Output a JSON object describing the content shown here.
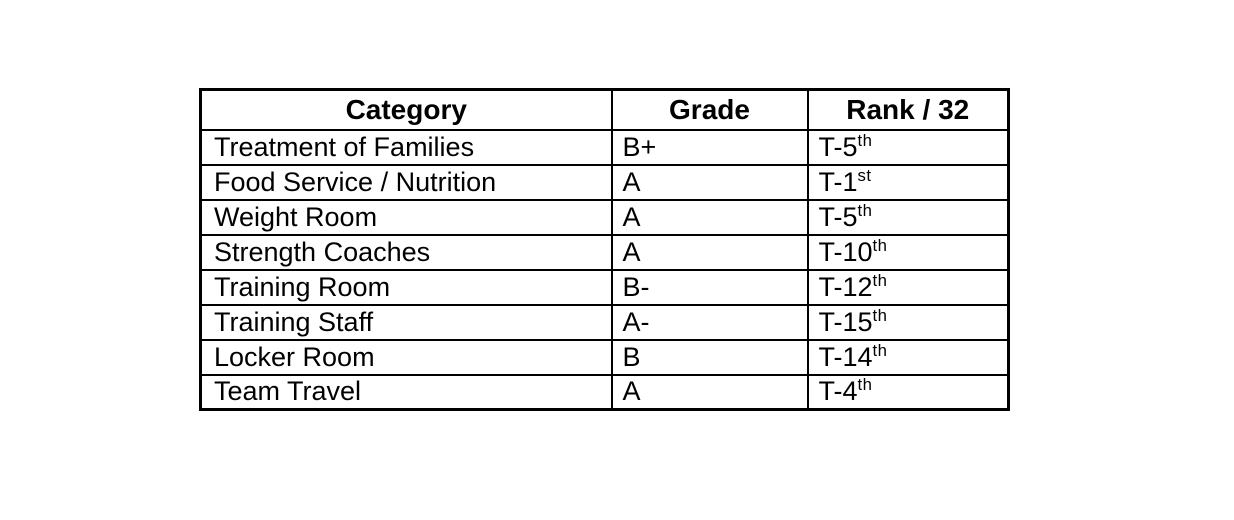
{
  "table": {
    "headers": [
      "Category",
      "Grade",
      "Rank / 32"
    ],
    "rows": [
      {
        "category": "Treatment of Families",
        "grade": "B+",
        "rank_base": "T-5",
        "rank_sup": "th"
      },
      {
        "category": "Food Service / Nutrition",
        "grade": "A",
        "rank_base": "T-1",
        "rank_sup": "st"
      },
      {
        "category": "Weight Room",
        "grade": "A",
        "rank_base": "T-5",
        "rank_sup": "th"
      },
      {
        "category": "Strength Coaches",
        "grade": "A",
        "rank_base": "T-10",
        "rank_sup": "th"
      },
      {
        "category": "Training Room",
        "grade": "B-",
        "rank_base": "T-12",
        "rank_sup": "th"
      },
      {
        "category": "Training Staff",
        "grade": "A-",
        "rank_base": "T-15",
        "rank_sup": "th"
      },
      {
        "category": "Locker Room",
        "grade": "B",
        "rank_base": "T-14",
        "rank_sup": "th"
      },
      {
        "category": "Team Travel",
        "grade": "A",
        "rank_base": "T-4",
        "rank_sup": "th"
      }
    ],
    "colors": {
      "border": "#000000",
      "background": "#ffffff",
      "text": "#000000"
    }
  },
  "chart_data": {
    "type": "table",
    "title": "",
    "columns": [
      "Category",
      "Grade",
      "Rank / 32"
    ],
    "rows": [
      [
        "Treatment of Families",
        "B+",
        "T-5th"
      ],
      [
        "Food Service / Nutrition",
        "A",
        "T-1st"
      ],
      [
        "Weight Room",
        "A",
        "T-5th"
      ],
      [
        "Strength Coaches",
        "A",
        "T-10th"
      ],
      [
        "Training Room",
        "B-",
        "T-12th"
      ],
      [
        "Training Staff",
        "A-",
        "T-15th"
      ],
      [
        "Locker Room",
        "B",
        "T-14th"
      ],
      [
        "Team Travel",
        "A",
        "T-4th"
      ]
    ]
  }
}
